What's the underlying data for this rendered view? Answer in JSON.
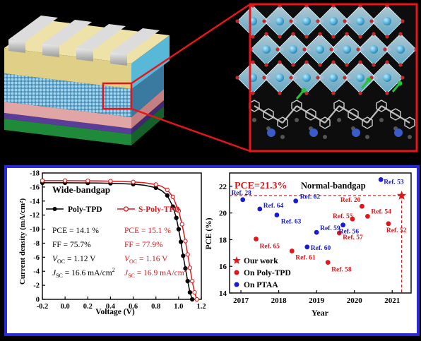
{
  "colors": {
    "background": "#000000",
    "panel_border": "#2a2ad8",
    "zoom_box": "#e8141b",
    "poly_tpd": "#000000",
    "s_poly_tpd": "#e0161b",
    "ptaa": "#1a1ad0",
    "accent_red": "#d7191c",
    "blue_text": "#1b1bd0"
  },
  "chart_data": [
    {
      "type": "line",
      "title": "Wide-bandgap",
      "xlabel": "Voltage (V)",
      "ylabel": "Current density (mA/cm²)",
      "xlim": [
        -0.2,
        1.2
      ],
      "ylim": [
        0,
        -18
      ],
      "x_ticks": [
        "-0.2",
        "0.0",
        "0.2",
        "0.4",
        "0.6",
        "0.8",
        "1.0",
        "1.2"
      ],
      "y_ticks": [
        "-18",
        "-16",
        "-14",
        "-12",
        "-10",
        "-8",
        "-6",
        "-4",
        "-2",
        "0"
      ],
      "legend_position": "center-right",
      "series": [
        {
          "name": "Poly-TPD",
          "marker": "circle",
          "color": "#000000",
          "x": [
            -0.2,
            -0.1,
            0.0,
            0.1,
            0.2,
            0.3,
            0.4,
            0.5,
            0.6,
            0.7,
            0.8,
            0.85,
            0.9,
            0.95,
            0.98,
            1.0,
            1.02,
            1.04,
            1.06,
            1.08,
            1.1,
            1.12
          ],
          "y": [
            -16.6,
            -16.6,
            -16.6,
            -16.59,
            -16.58,
            -16.56,
            -16.53,
            -16.48,
            -16.4,
            -16.25,
            -15.9,
            -15.5,
            -14.8,
            -13.2,
            -11.6,
            -10.0,
            -8.2,
            -6.2,
            -4.4,
            -2.6,
            -1.0,
            0.0
          ]
        },
        {
          "name": "S-Poly-TPD",
          "marker": "circle-open",
          "color": "#e0161b",
          "x": [
            -0.2,
            -0.1,
            0.0,
            0.1,
            0.2,
            0.3,
            0.4,
            0.5,
            0.6,
            0.7,
            0.8,
            0.85,
            0.9,
            0.95,
            1.0,
            1.03,
            1.06,
            1.08,
            1.1,
            1.12,
            1.14,
            1.16
          ],
          "y": [
            -16.9,
            -16.9,
            -16.9,
            -16.89,
            -16.88,
            -16.86,
            -16.83,
            -16.79,
            -16.72,
            -16.6,
            -16.35,
            -16.1,
            -15.6,
            -14.6,
            -12.6,
            -10.7,
            -8.3,
            -6.4,
            -4.5,
            -2.6,
            -1.0,
            0.0
          ]
        }
      ],
      "annotations": {
        "left": [
          "PCE = 14.1 %",
          "FF = 75.7%",
          "V_OC = 1.12 V",
          "J_SC = 16.6 mA/cm²"
        ],
        "right": [
          "PCE = 15.1 %",
          "FF = 77.9%",
          "V_OC = 1.16 V",
          "J_SC = 16.9 mA/cm²"
        ]
      }
    },
    {
      "type": "scatter",
      "title": "Normal-bandgap",
      "highlight": "PCE=21.3%",
      "xlabel": "Year",
      "ylabel": "PCE (%)",
      "xlim": [
        2016.7,
        2021.5
      ],
      "ylim": [
        14,
        23
      ],
      "x_ticks": [
        "2017",
        "2018",
        "2019",
        "2020",
        "2021"
      ],
      "y_ticks": [
        "14",
        "16",
        "18",
        "20",
        "22"
      ],
      "reference_line": {
        "x": 2021.25,
        "y": 21.3
      },
      "legend_position": "bottom-left",
      "series": [
        {
          "name": "Our work",
          "marker": "star",
          "color": "#e0161b",
          "points": [
            {
              "x": 2021.25,
              "y": 21.3,
              "label": ""
            }
          ]
        },
        {
          "name": "On Poly-TPD",
          "marker": "circle",
          "color": "#e0161b",
          "points": [
            {
              "x": 2017.4,
              "y": 18.05,
              "label": "Ref. 65"
            },
            {
              "x": 2018.35,
              "y": 17.15,
              "label": "Ref. 61"
            },
            {
              "x": 2019.3,
              "y": 16.3,
              "label": "Ref. 58"
            },
            {
              "x": 2019.6,
              "y": 18.5,
              "label": "Ref. 57"
            },
            {
              "x": 2019.95,
              "y": 19.55,
              "label": "Ref. 55"
            },
            {
              "x": 2020.2,
              "y": 20.5,
              "label": "Ref. 20"
            },
            {
              "x": 2020.35,
              "y": 19.75,
              "label": "Ref. 54"
            },
            {
              "x": 2020.9,
              "y": 19.2,
              "label": "Ref. 52"
            }
          ]
        },
        {
          "name": "On PTAA",
          "marker": "circle",
          "color": "#1a1ad0",
          "points": [
            {
              "x": 2017.05,
              "y": 21.0,
              "label": "Ref. 28"
            },
            {
              "x": 2017.5,
              "y": 20.3,
              "label": "Ref. 64"
            },
            {
              "x": 2017.95,
              "y": 19.85,
              "label": "Ref. 63"
            },
            {
              "x": 2018.45,
              "y": 20.9,
              "label": "Ref. 62"
            },
            {
              "x": 2018.75,
              "y": 17.45,
              "label": "Ref. 60"
            },
            {
              "x": 2019.0,
              "y": 18.55,
              "label": "Ref. 59"
            },
            {
              "x": 2019.7,
              "y": 19.1,
              "label": "Ref. 56"
            },
            {
              "x": 2020.7,
              "y": 22.5,
              "label": "Ref. 53"
            }
          ]
        }
      ]
    }
  ],
  "left_chart": {
    "title": "Wide-bandgap",
    "xlabel": "Voltage (V)",
    "ylabel": "Current density (mA/cm²)",
    "legend": [
      "Poly-TPD",
      "S-Poly-TPD"
    ],
    "left": {
      "pce": "PCE = 14.1 %",
      "ff": "FF = 75.7%",
      "voc_sym": "V",
      "voc_sub": "OC",
      "voc_val": " = 1.12 V",
      "jsc_sym": "J",
      "jsc_sub": "SC",
      "jsc_val": " = 16.6 mA/cm",
      "jsc_sup": "2"
    },
    "right": {
      "pce": "PCE = 15.1 %",
      "ff": "FF = 77.9%",
      "voc_sym": "V",
      "voc_sub": "OC",
      "voc_val": " = 1.16 V",
      "jsc_sym": "J",
      "jsc_sub": "SC",
      "jsc_val": " = 16.9 mA/cm",
      "jsc_sup": "2"
    }
  },
  "right_chart": {
    "highlight": "PCE=21.3%",
    "title": "Normal-bandgap",
    "xlabel": "Year",
    "ylabel": "PCE (%)",
    "legend": [
      "Our work",
      "On Poly-TPD",
      "On PTAA"
    ]
  }
}
